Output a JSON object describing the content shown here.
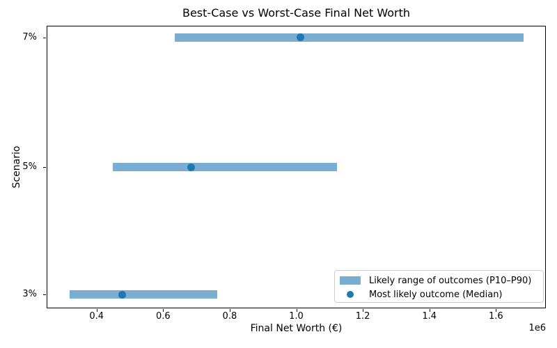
{
  "chart_data": {
    "type": "bar",
    "subtype": "horizontal_range_bar_with_median_dot",
    "title": "Best-Case vs Worst-Case Final Net Worth",
    "xlabel": "Final Net Worth (€)",
    "ylabel": "Scenario",
    "x_axis": {
      "min": 250000,
      "max": 1750000,
      "ticks": [
        400000,
        600000,
        800000,
        1000000,
        1200000,
        1400000,
        1600000
      ],
      "tick_labels": [
        "0.4",
        "0.6",
        "0.8",
        "1.0",
        "1.2",
        "1.4",
        "1.6"
      ],
      "offset_label": "1e6",
      "grid": false
    },
    "categories": [
      "7%",
      "5%",
      "3%"
    ],
    "rows": [
      {
        "category": "7%",
        "p10": 634000,
        "median": 1013000,
        "p90": 1684000
      },
      {
        "category": "5%",
        "p10": 448000,
        "median": 685000,
        "p90": 1122000
      },
      {
        "category": "3%",
        "p10": 318000,
        "median": 477000,
        "p90": 762000
      }
    ],
    "series": [
      {
        "name": "Likely range of outcomes (P10–P90)",
        "type": "range",
        "p10": [
          634000,
          448000,
          318000
        ],
        "p90": [
          1684000,
          1122000,
          762000
        ]
      },
      {
        "name": "Most likely outcome (Median)",
        "type": "point",
        "values": [
          1013000,
          685000,
          477000
        ]
      }
    ],
    "legend": {
      "position": "lower right",
      "entries": [
        {
          "swatch": "bar",
          "label": "Likely range of outcomes (P10–P90)"
        },
        {
          "swatch": "dot",
          "label": "Most likely outcome (Median)"
        }
      ]
    },
    "colors": {
      "range_bar": "#1f77b4",
      "range_bar_alpha": 0.6,
      "median_dot": "#1f77b4",
      "spine": "#000000",
      "background": "#ffffff"
    }
  }
}
